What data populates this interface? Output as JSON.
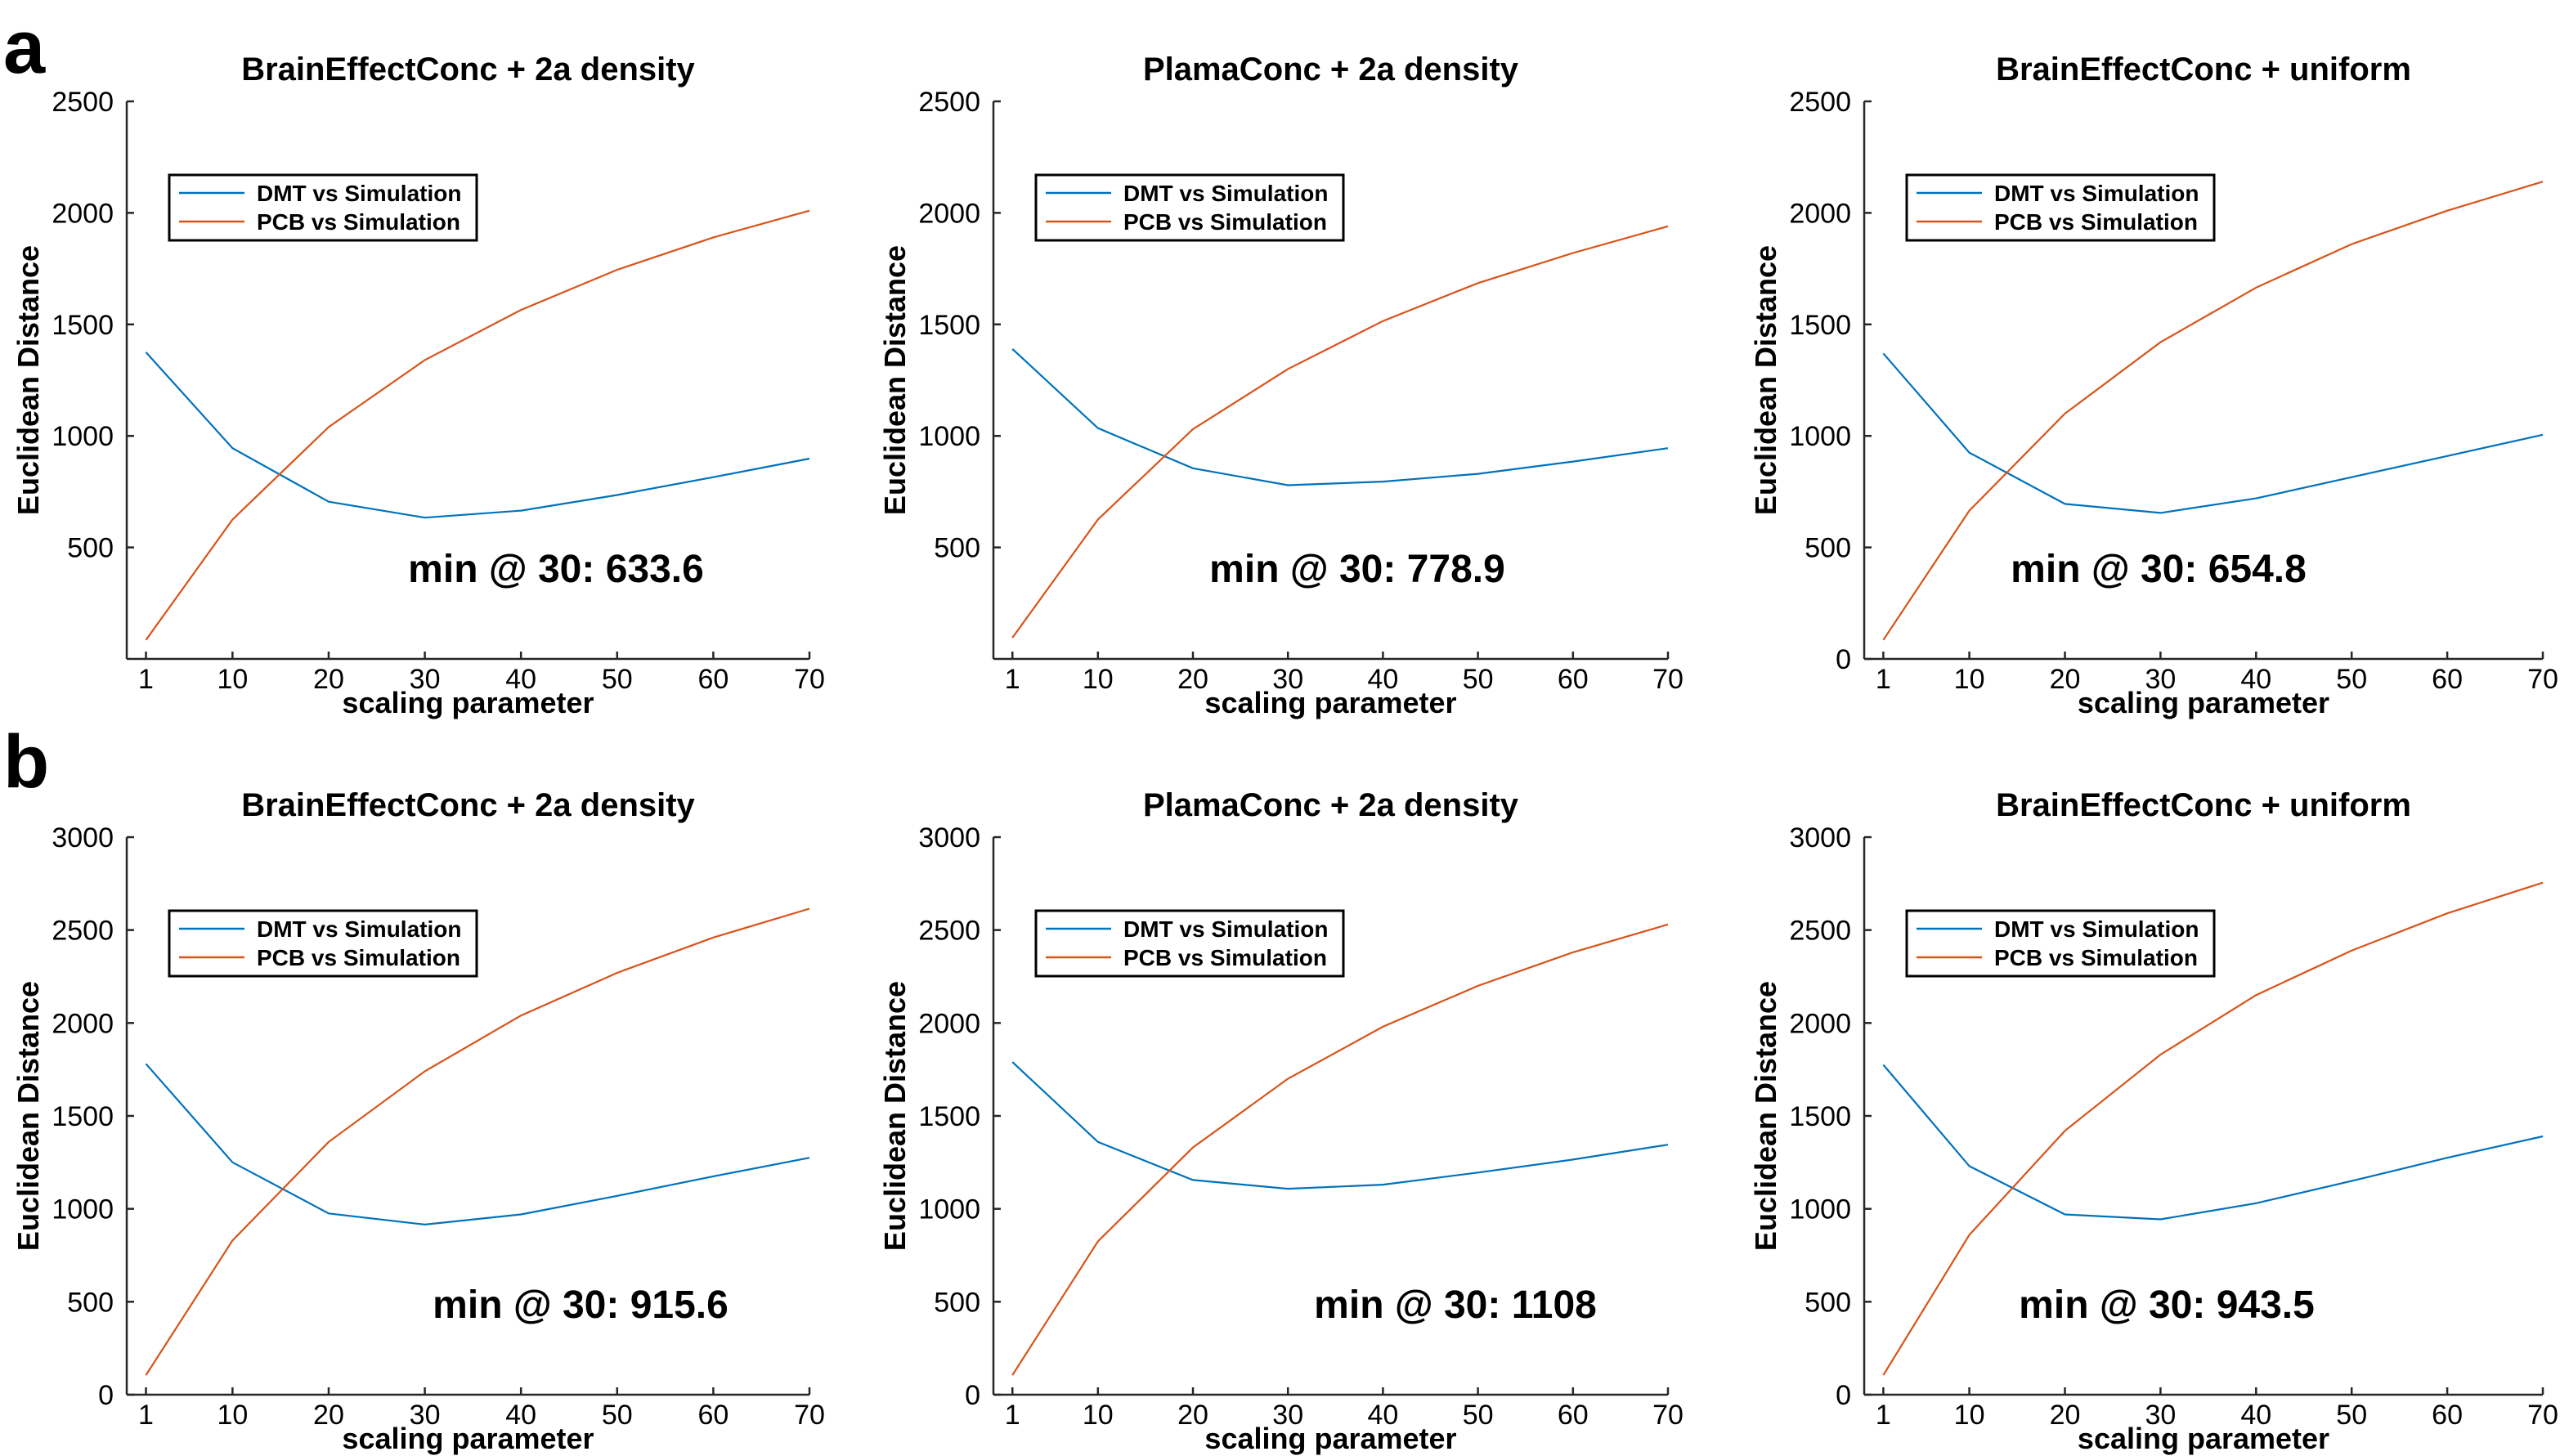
{
  "panel_labels": [
    "a",
    "b"
  ],
  "colors": {
    "dmt": "#0072BD",
    "pcb": "#D95319",
    "axis": "#262626"
  },
  "chart_data": [
    {
      "type": "line",
      "panel": "a",
      "title": "BrainEffectConc + 2a density",
      "xlabel": "scaling parameter",
      "ylabel": "Euclidean Distance",
      "x": [
        1,
        10,
        20,
        30,
        40,
        50,
        60,
        70
      ],
      "xlim": [
        -1,
        70
      ],
      "ylim": [
        0,
        2500
      ],
      "yticks": [
        500,
        1000,
        1500,
        2000,
        2500
      ],
      "series": [
        {
          "name": "DMT vs Simulation",
          "values": [
            1375,
            945,
            705,
            633.6,
            665,
            735,
            815,
            898
          ]
        },
        {
          "name": "PCB vs Simulation",
          "values": [
            85,
            625,
            1040,
            1340,
            1565,
            1745,
            1890,
            2010
          ]
        }
      ],
      "annotation": "min @ 30: 633.6",
      "legend": "top-left",
      "grid": false
    },
    {
      "type": "line",
      "panel": "a",
      "title": "PlamaConc + 2a density",
      "xlabel": "scaling parameter",
      "ylabel": "Euclidean Distance",
      "x": [
        1,
        10,
        20,
        30,
        40,
        50,
        60,
        70
      ],
      "xlim": [
        -1,
        70
      ],
      "ylim": [
        0,
        2500
      ],
      "yticks": [
        500,
        1000,
        1500,
        2000,
        2500
      ],
      "series": [
        {
          "name": "DMT vs Simulation",
          "values": [
            1390,
            1035,
            855,
            778.9,
            795,
            830,
            885,
            945
          ]
        },
        {
          "name": "PCB vs Simulation",
          "values": [
            95,
            625,
            1030,
            1300,
            1515,
            1685,
            1820,
            1940
          ]
        }
      ],
      "annotation": "min @ 30: 778.9",
      "legend": "top-left",
      "grid": false
    },
    {
      "type": "line",
      "panel": "a",
      "title": "BrainEffectConc + uniform",
      "xlabel": "scaling parameter",
      "ylabel": "Euclidean Distance",
      "x": [
        1,
        10,
        20,
        30,
        40,
        50,
        60,
        70
      ],
      "xlim": [
        -1,
        70
      ],
      "ylim": [
        0,
        2500
      ],
      "yticks": [
        0,
        500,
        1000,
        1500,
        2000,
        2500
      ],
      "series": [
        {
          "name": "DMT vs Simulation",
          "values": [
            1370,
            925,
            695,
            654.8,
            720,
            815,
            910,
            1005
          ]
        },
        {
          "name": "PCB vs Simulation",
          "values": [
            85,
            665,
            1100,
            1420,
            1665,
            1860,
            2010,
            2140
          ]
        }
      ],
      "annotation": "min @ 30: 654.8",
      "legend": "top-left",
      "grid": false
    },
    {
      "type": "line",
      "panel": "b",
      "title": "BrainEffectConc + 2a density",
      "xlabel": "scaling parameter",
      "ylabel": "Euclidean Distance",
      "x": [
        1,
        10,
        20,
        30,
        40,
        50,
        60,
        70
      ],
      "xlim": [
        -1,
        70
      ],
      "ylim": [
        0,
        3000
      ],
      "yticks": [
        0,
        500,
        1000,
        1500,
        2000,
        2500,
        3000
      ],
      "series": [
        {
          "name": "DMT vs Simulation",
          "values": [
            1780,
            1250,
            975,
            915.6,
            970,
            1070,
            1175,
            1275
          ]
        },
        {
          "name": "PCB vs Simulation",
          "values": [
            105,
            830,
            1360,
            1740,
            2040,
            2270,
            2460,
            2615
          ]
        }
      ],
      "annotation": "min @ 30: 915.6",
      "legend": "top-left",
      "grid": false
    },
    {
      "type": "line",
      "panel": "b",
      "title": "PlamaConc + 2a density",
      "xlabel": "scaling parameter",
      "ylabel": "Euclidean Distance",
      "x": [
        1,
        10,
        20,
        30,
        40,
        50,
        60,
        70
      ],
      "xlim": [
        -1,
        70
      ],
      "ylim": [
        0,
        3000
      ],
      "yticks": [
        0,
        500,
        1000,
        1500,
        2000,
        2500,
        3000
      ],
      "series": [
        {
          "name": "DMT vs Simulation",
          "values": [
            1790,
            1360,
            1155,
            1108,
            1130,
            1195,
            1265,
            1345
          ]
        },
        {
          "name": "PCB vs Simulation",
          "values": [
            105,
            825,
            1330,
            1700,
            1980,
            2200,
            2380,
            2530
          ]
        }
      ],
      "annotation": "min @ 30: 1108",
      "legend": "top-left",
      "grid": false
    },
    {
      "type": "line",
      "panel": "b",
      "title": "BrainEffectConc + uniform",
      "xlabel": "scaling parameter",
      "ylabel": "Euclidean Distance",
      "x": [
        1,
        10,
        20,
        30,
        40,
        50,
        60,
        70
      ],
      "xlim": [
        -1,
        70
      ],
      "ylim": [
        0,
        3000
      ],
      "yticks": [
        0,
        500,
        1000,
        1500,
        2000,
        2500,
        3000
      ],
      "series": [
        {
          "name": "DMT vs Simulation",
          "values": [
            1775,
            1230,
            970,
            943.5,
            1030,
            1150,
            1275,
            1390
          ]
        },
        {
          "name": "PCB vs Simulation",
          "values": [
            105,
            860,
            1420,
            1830,
            2150,
            2390,
            2590,
            2755
          ]
        }
      ],
      "annotation": "min @ 30: 943.5",
      "legend": "top-left",
      "grid": false
    }
  ]
}
